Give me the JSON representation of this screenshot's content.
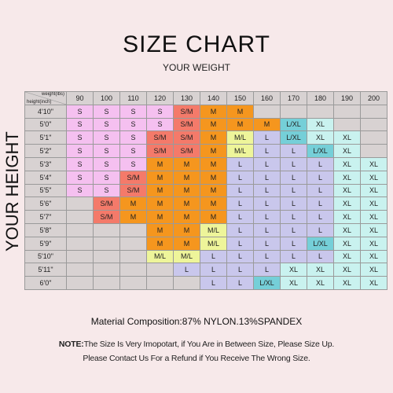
{
  "title": "SIZE CHART",
  "subtitle": "YOUR WEIGHT",
  "side_label": "YOUR HEIGHT",
  "corner": {
    "weight_label": "weight(lbs)",
    "height_label": "height(inch)"
  },
  "colors": {
    "S": "#f5c0f0",
    "S/M": "#f47a6a",
    "M": "#f5961e",
    "M/L": "#eef59a",
    "L": "#c9c7ec",
    "L/XL": "#75cfd8",
    "XL": "#c9f2ef",
    "empty": "#d8d2d2",
    "header": "#d8d2d2"
  },
  "weights": [
    "90",
    "100",
    "110",
    "120",
    "130",
    "140",
    "150",
    "160",
    "170",
    "180",
    "190",
    "200"
  ],
  "rows": [
    {
      "height": "4'10\"",
      "sizes": [
        "S",
        "S",
        "S",
        "S",
        "S/M",
        "M",
        "M",
        "",
        "",
        "",
        "",
        ""
      ]
    },
    {
      "height": "5'0\"",
      "sizes": [
        "S",
        "S",
        "S",
        "S",
        "S/M",
        "M",
        "M",
        "M",
        "L/XL",
        "XL",
        "",
        ""
      ]
    },
    {
      "height": "5'1\"",
      "sizes": [
        "S",
        "S",
        "S",
        "S/M",
        "S/M",
        "M",
        "M/L",
        "L",
        "L/XL",
        "XL",
        "XL",
        ""
      ]
    },
    {
      "height": "5'2\"",
      "sizes": [
        "S",
        "S",
        "S",
        "S/M",
        "S/M",
        "M",
        "M/L",
        "L",
        "L",
        "L/XL",
        "XL",
        ""
      ]
    },
    {
      "height": "5'3\"",
      "sizes": [
        "S",
        "S",
        "S",
        "M",
        "M",
        "M",
        "L",
        "L",
        "L",
        "L",
        "XL",
        "XL"
      ]
    },
    {
      "height": "5'4\"",
      "sizes": [
        "S",
        "S",
        "S/M",
        "M",
        "M",
        "M",
        "L",
        "L",
        "L",
        "L",
        "XL",
        "XL"
      ]
    },
    {
      "height": "5'5\"",
      "sizes": [
        "S",
        "S",
        "S/M",
        "M",
        "M",
        "M",
        "L",
        "L",
        "L",
        "L",
        "XL",
        "XL"
      ]
    },
    {
      "height": "5'6\"",
      "sizes": [
        "",
        "S/M",
        "M",
        "M",
        "M",
        "M",
        "L",
        "L",
        "L",
        "L",
        "XL",
        "XL"
      ]
    },
    {
      "height": "5'7\"",
      "sizes": [
        "",
        "S/M",
        "M",
        "M",
        "M",
        "M",
        "L",
        "L",
        "L",
        "L",
        "XL",
        "XL"
      ]
    },
    {
      "height": "5'8\"",
      "sizes": [
        "",
        "",
        "",
        "M",
        "M",
        "M/L",
        "L",
        "L",
        "L",
        "L",
        "XL",
        "XL"
      ]
    },
    {
      "height": "5'9\"",
      "sizes": [
        "",
        "",
        "",
        "M",
        "M",
        "M/L",
        "L",
        "L",
        "L",
        "L/XL",
        "XL",
        "XL"
      ]
    },
    {
      "height": "5'10\"",
      "sizes": [
        "",
        "",
        "",
        "M/L",
        "M/L",
        "L",
        "L",
        "L",
        "L",
        "L",
        "XL",
        "XL"
      ]
    },
    {
      "height": "5'11\"",
      "sizes": [
        "",
        "",
        "",
        "",
        "L",
        "L",
        "L",
        "L",
        "XL",
        "XL",
        "XL",
        "XL"
      ]
    },
    {
      "height": "6'0\"",
      "sizes": [
        "",
        "",
        "",
        "",
        "",
        "L",
        "L",
        "L/XL",
        "XL",
        "XL",
        "XL",
        "XL"
      ]
    }
  ],
  "material": "Material Composition:87% NYLON.13%SPANDEX",
  "note_label": "NOTE:",
  "note_text": "The Size Is Very Imopotart, if You Are in Between Size, Please Size Up.",
  "note_line2": "Please Contact Us For a Refund if You Receive The Wrong Size."
}
